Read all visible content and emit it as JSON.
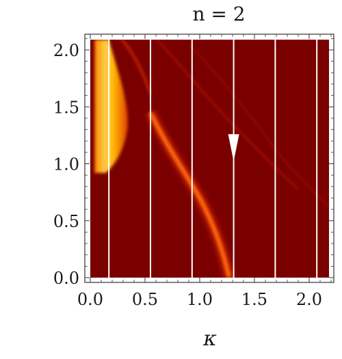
{
  "chart_data": {
    "type": "heatmap",
    "title": "n = 2",
    "xlabel": "κ",
    "ylabel": "",
    "xlim": [
      0.0,
      2.25
    ],
    "ylim": [
      0.0,
      2.1
    ],
    "x_ticks": [
      "0.0",
      "0.5",
      "1.0",
      "1.5",
      "2.0"
    ],
    "y_ticks": [
      "0.0",
      "0.5",
      "1.0",
      "1.5",
      "2.0"
    ],
    "colormap": [
      "#7a0000",
      "#c01800",
      "#ff5a00",
      "#ffc000",
      "#ffff60"
    ],
    "background_color": "#7a0000",
    "vertical_lines_x": [
      0.17,
      0.55,
      0.93,
      1.31,
      1.69,
      2.07
    ],
    "arrow": {
      "x": 1.31,
      "y_from": 1.26,
      "y_to": 1.02,
      "color": "#ffffff"
    }
  }
}
